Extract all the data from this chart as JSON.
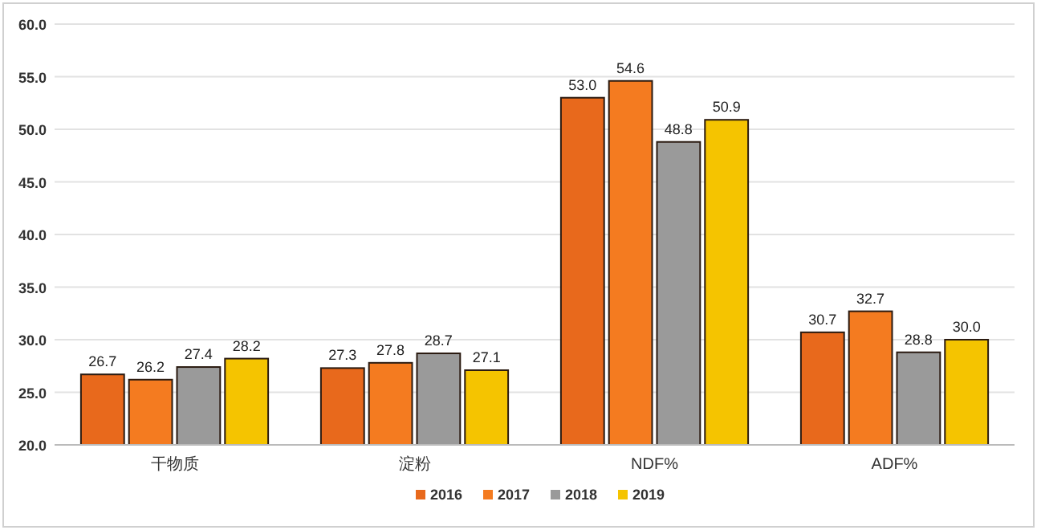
{
  "chart_data": {
    "type": "bar",
    "categories": [
      "干物质",
      "淀粉",
      "NDF%",
      "ADF%"
    ],
    "series": [
      {
        "name": "2016",
        "color": "#e8691c",
        "values": [
          26.7,
          27.3,
          53.0,
          30.7
        ],
        "value_labels": [
          "26.7",
          "27.3",
          "53.0",
          "30.7"
        ]
      },
      {
        "name": "2017",
        "color": "#f47b20",
        "values": [
          26.2,
          27.8,
          54.6,
          32.7
        ],
        "value_labels": [
          "26.2",
          "27.8",
          "54.6",
          "32.7"
        ]
      },
      {
        "name": "2018",
        "color": "#9a9a9a",
        "values": [
          27.4,
          28.7,
          48.8,
          28.8
        ],
        "value_labels": [
          "27.4",
          "28.7",
          "48.8",
          "28.8"
        ]
      },
      {
        "name": "2019",
        "color": "#f5c400",
        "values": [
          28.2,
          27.1,
          50.9,
          30.0
        ],
        "value_labels": [
          "28.2",
          "27.1",
          "50.9",
          "30.0"
        ]
      }
    ],
    "ylim": [
      20,
      60
    ],
    "yticks": [
      {
        "value": 20,
        "label": "20.0"
      },
      {
        "value": 25,
        "label": "25.0"
      },
      {
        "value": 30,
        "label": "30.0"
      },
      {
        "value": 35,
        "label": "35.0"
      },
      {
        "value": 40,
        "label": "40.0"
      },
      {
        "value": 45,
        "label": "45.0"
      },
      {
        "value": 50,
        "label": "50.0"
      },
      {
        "value": 55,
        "label": "55.0"
      },
      {
        "value": 60,
        "label": "60.0"
      }
    ],
    "grid": "y",
    "legend": "bottom"
  }
}
